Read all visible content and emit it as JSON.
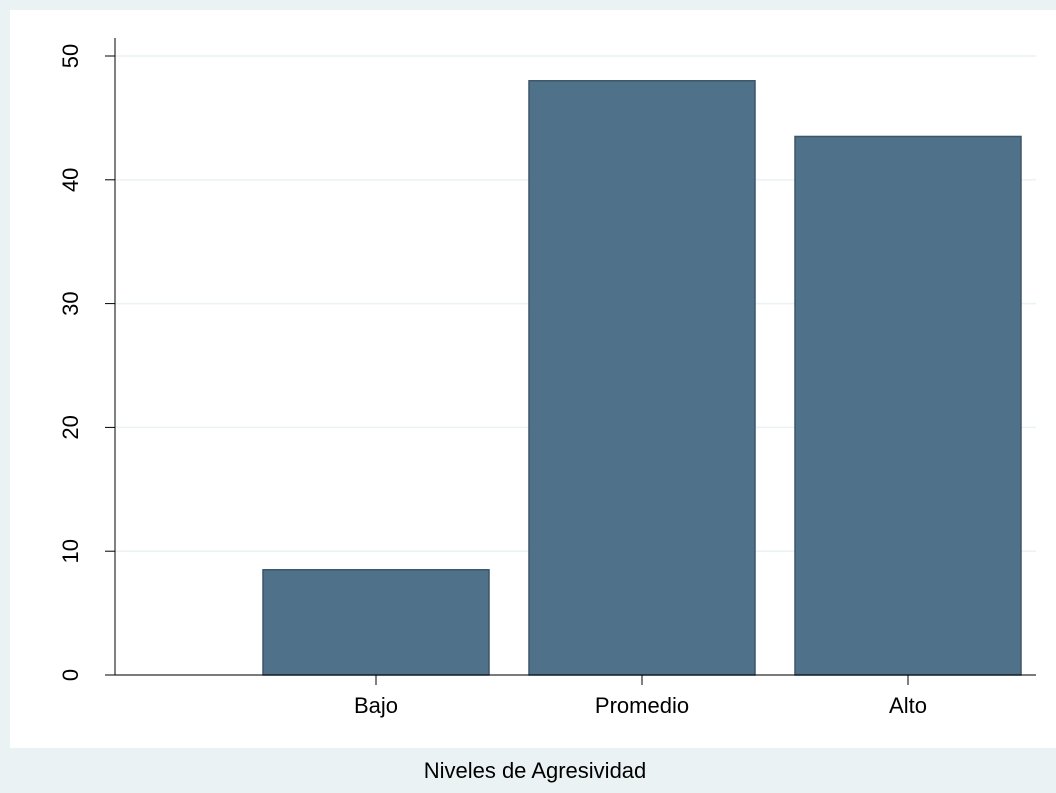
{
  "chart_data": {
    "type": "bar",
    "x_label": "Niveles de Agresividad",
    "categories": [
      "Bajo",
      "Promedio",
      "Alto"
    ],
    "values": [
      8.5,
      48,
      43.5
    ],
    "color": "#4f7189",
    "ylim": [
      0,
      50
    ],
    "yticks": [
      0,
      10,
      20,
      30,
      40,
      50
    ],
    "grid": true
  }
}
